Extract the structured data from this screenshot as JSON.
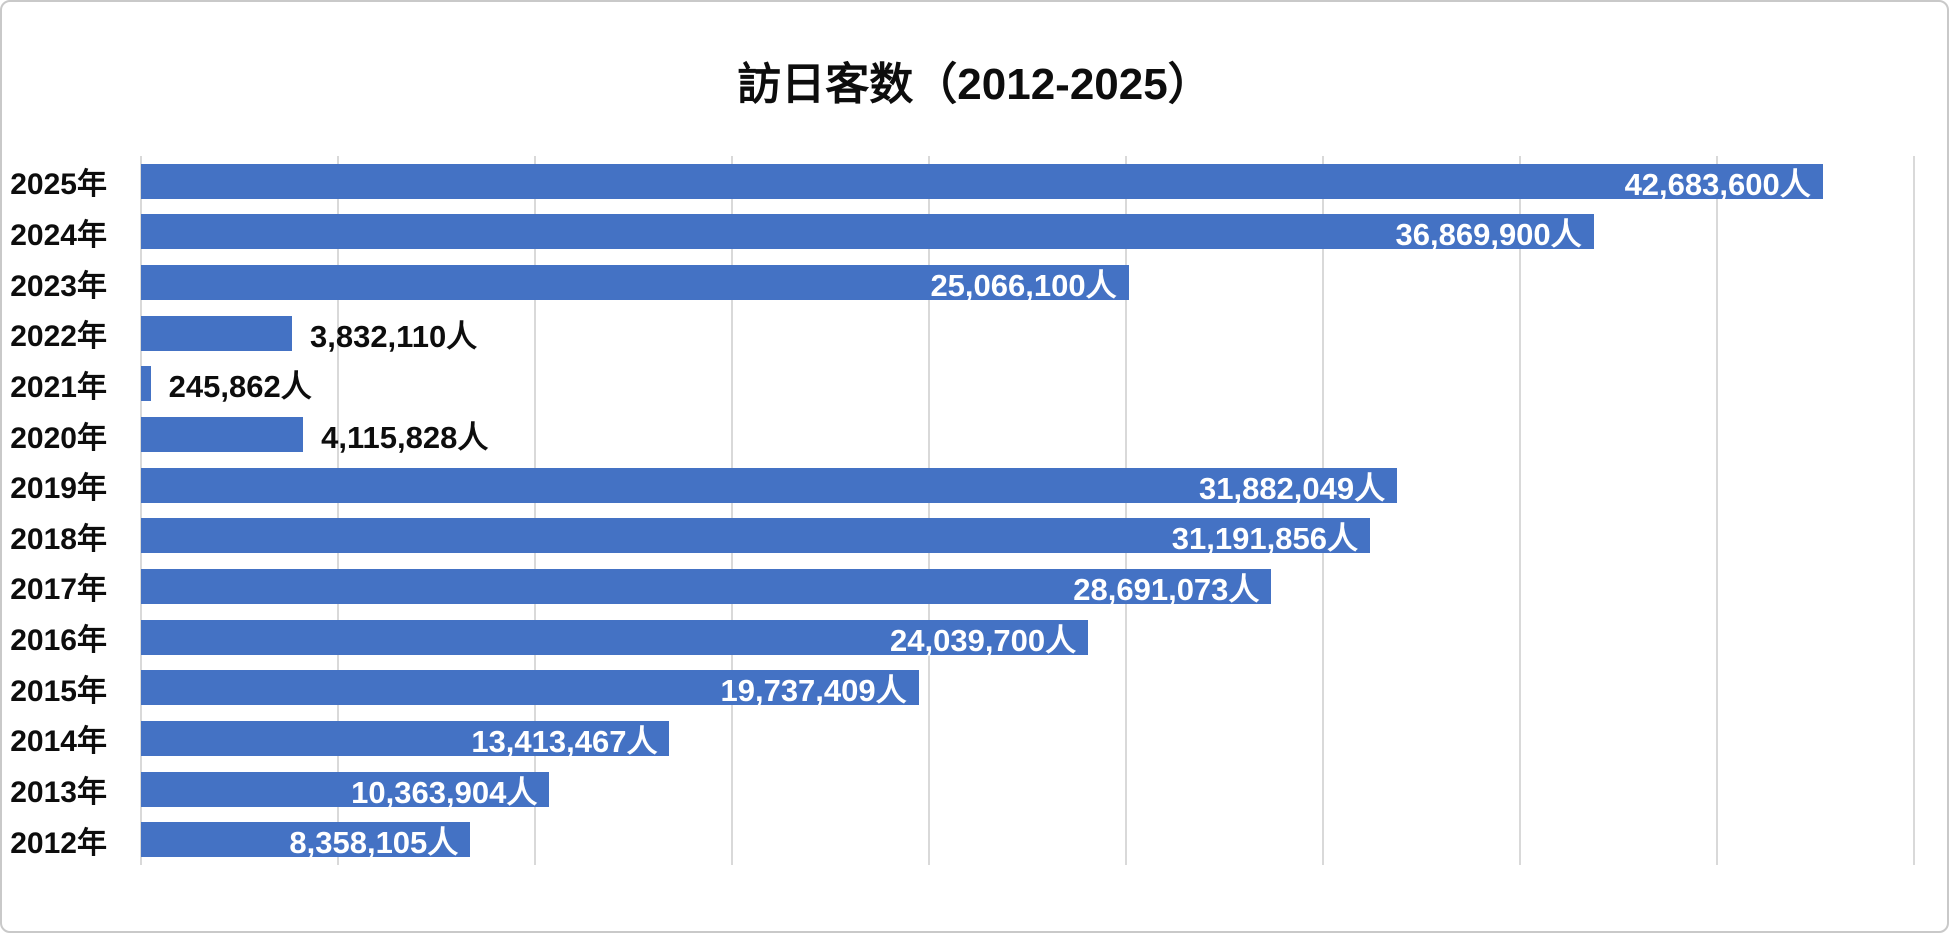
{
  "chart_data": {
    "type": "bar",
    "orientation": "horizontal",
    "title": "訪日客数（2012-2025）",
    "categories": [
      "2025年",
      "2024年",
      "2023年",
      "2022年",
      "2021年",
      "2020年",
      "2019年",
      "2018年",
      "2017年",
      "2016年",
      "2015年",
      "2014年",
      "2013年",
      "2012年"
    ],
    "values": [
      42683600,
      36869900,
      25066100,
      3832110,
      245862,
      4115828,
      31882049,
      31191856,
      28691073,
      24039700,
      19737409,
      13413467,
      10363904,
      8358105
    ],
    "value_labels": [
      "42,683,600人",
      "36,869,900人",
      "25,066,100人",
      "3,832,110人",
      "245,862人",
      "4,115,828人",
      "31,882,049人",
      "31,191,856人",
      "28,691,073人",
      "24,039,700人",
      "19,737,409人",
      "13,413,467人",
      "10,363,904人",
      "8,358,105人"
    ],
    "label_positions": [
      "inside-end",
      "inside-end",
      "inside-end",
      "outside-end",
      "outside-end",
      "outside-end",
      "inside-end",
      "inside-end",
      "inside-end",
      "inside-end",
      "inside-end",
      "inside-end",
      "inside-end",
      "inside-end"
    ],
    "xlabel": "",
    "ylabel": "",
    "xlim": [
      0,
      45000000
    ],
    "gridline_step": 5000000,
    "grid": "vertical-only",
    "legend": "none",
    "axis_tick_labels": "none",
    "colors": {
      "bar": "#4472C4",
      "gridline": "#D9D9D9",
      "value_label_inside": "#FFFFFF",
      "value_label_outside": "#0D0D0D",
      "axis_label": "#0D0D0D",
      "background": "#FFFFFF",
      "border": "#C9C9C9"
    }
  }
}
